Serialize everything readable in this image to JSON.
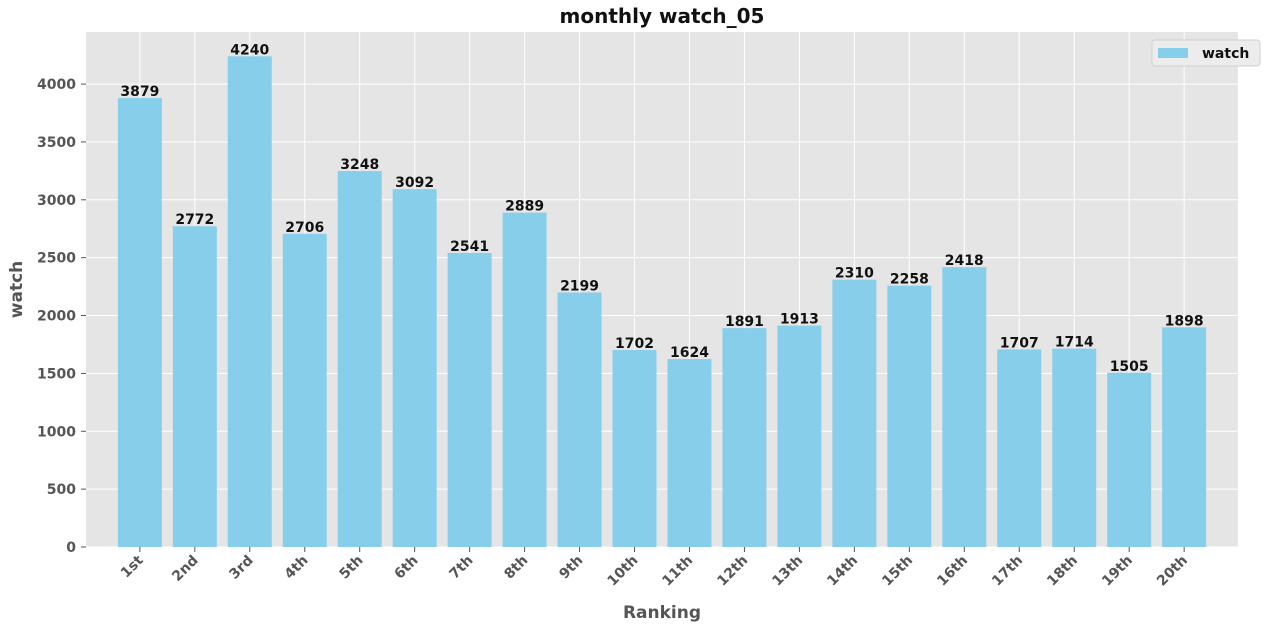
{
  "chart_data": {
    "type": "bar",
    "title": "monthly watch_05",
    "xlabel": "Ranking",
    "ylabel": "watch",
    "categories": [
      "1st",
      "2nd",
      "3rd",
      "4th",
      "5th",
      "6th",
      "7th",
      "8th",
      "9th",
      "10th",
      "11th",
      "12th",
      "13th",
      "14th",
      "15th",
      "16th",
      "17th",
      "18th",
      "19th",
      "20th"
    ],
    "series": [
      {
        "name": "watch",
        "values": [
          3879,
          2772,
          4240,
          2706,
          3248,
          3092,
          2541,
          2889,
          2199,
          1702,
          1624,
          1891,
          1913,
          2310,
          2258,
          2418,
          1707,
          1714,
          1505,
          1898
        ]
      }
    ],
    "ylim": [
      0,
      4450
    ],
    "yticks": [
      0,
      500,
      1000,
      1500,
      2000,
      2500,
      3000,
      3500,
      4000
    ],
    "grid": true,
    "legend_position": "top-right",
    "show_data_labels": true,
    "colors": {
      "bar": "#87CEEB",
      "background": "#E5E5E5",
      "grid": "#FFFFFF",
      "text": "#111111",
      "axis_text": "#555555"
    }
  }
}
